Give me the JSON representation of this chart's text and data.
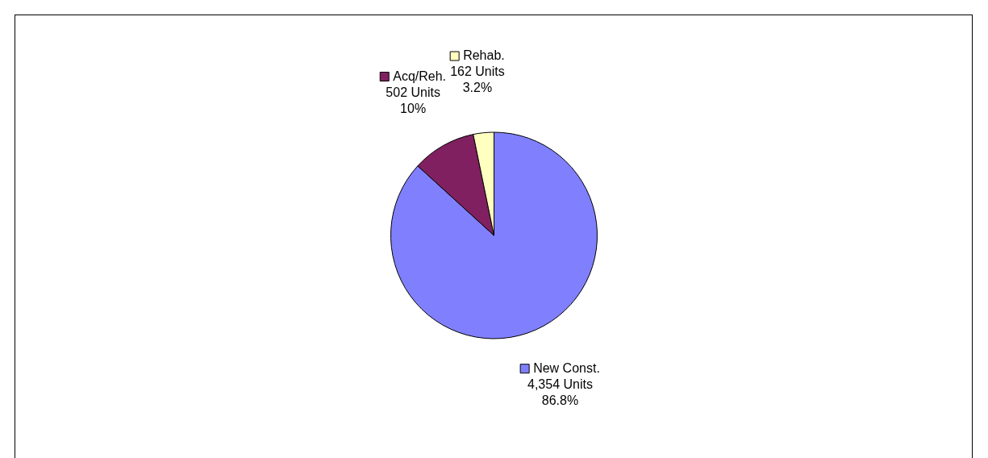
{
  "chart_data": {
    "type": "pie",
    "categories": [
      "New Const.",
      "Acq/Reh.",
      "Rehab."
    ],
    "values": [
      4354,
      502,
      162
    ],
    "colors": [
      "#8080ff",
      "#802060",
      "#ffffc0"
    ],
    "value_labels": [
      "4,354 Units\n86.8%",
      "502 Units\n10%",
      "162 Units\n3.2%"
    ],
    "legend": "top"
  }
}
